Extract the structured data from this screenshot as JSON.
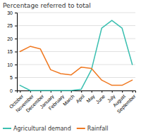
{
  "chart_data": {
    "type": "line",
    "title": "Percentage referred to total",
    "categories": [
      "October",
      "November",
      "December",
      "January",
      "February",
      "March",
      "April",
      "May",
      "June",
      "July",
      "August",
      "September"
    ],
    "series": [
      {
        "name": "Agricultural demand",
        "color": "#3abfb0",
        "values": [
          2,
          0,
          0,
          0,
          0,
          0,
          0.5,
          8,
          24,
          27,
          24,
          10
        ]
      },
      {
        "name": "Rainfall",
        "color": "#f07820",
        "values": [
          15,
          17,
          16,
          8,
          6.5,
          6,
          9,
          8.5,
          4,
          2,
          2,
          4
        ]
      }
    ],
    "ylim": [
      0,
      30
    ],
    "yticks": [
      0,
      5,
      10,
      15,
      20,
      25,
      30
    ],
    "grid": true,
    "legend": "bottom"
  }
}
